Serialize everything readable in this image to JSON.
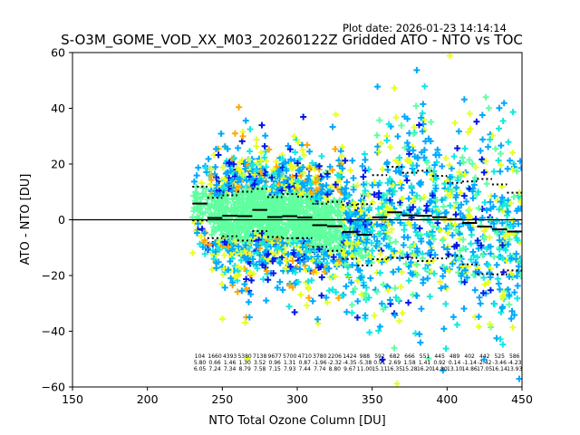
{
  "plot_date": "Plot date: 2026-01-23 14:14:14",
  "chart_data": {
    "type": "scatter",
    "title": "S-O3M_GOME_VOD_XX_M03_20260122Z Gridded ATO - NTO vs TOC",
    "xlabel": "NTO Total Ozone Column [DU]",
    "ylabel": "ATO - NTO [DU]",
    "xlim": [
      150,
      450
    ],
    "ylim": [
      -60,
      60
    ],
    "xticks": [
      "150",
      "200",
      "250",
      "300",
      "350",
      "400",
      "450"
    ],
    "yticks": [
      "60",
      "40",
      "20",
      "0",
      "−20",
      "−40",
      "−60"
    ],
    "grid": false,
    "zero_line": 0,
    "bin_width": 10,
    "bin_centers": [
      235,
      245,
      255,
      265,
      275,
      285,
      295,
      305,
      315,
      325,
      335,
      345,
      355,
      365,
      375,
      385,
      395,
      405,
      415,
      425,
      435,
      445
    ],
    "counts": [
      "104",
      "1660",
      "4393",
      "5380",
      "7138",
      "9677",
      "5700",
      "4710",
      "3780",
      "2206",
      "1424",
      "988",
      "592",
      "682",
      "666",
      "551",
      "445",
      "489",
      "402",
      "442",
      "525",
      "586"
    ],
    "means": [
      "5.80",
      "0.66",
      "1.46",
      "1.30",
      "3.52",
      "0.96",
      "1.31",
      "0.87",
      "-1.96",
      "-2.32",
      "-4.35",
      "-5.38",
      "0.91",
      "2.69",
      "1.58",
      "1.41",
      "0.92",
      "0.14",
      "-1.14",
      "-2.42",
      "-3.46",
      "-4.23"
    ],
    "stds": [
      "6.05",
      "7.24",
      "7.34",
      "8.79",
      "7.58",
      "7.15",
      "7.93",
      "7.44",
      "7.74",
      "8.80",
      "9.67",
      "11.00",
      "15.11",
      "16.35",
      "15.28",
      "16.20",
      "14.80",
      "13.10",
      "14.86",
      "17.05",
      "16.14",
      "13.93"
    ],
    "series": [
      {
        "name": "gridded points",
        "marker": "+",
        "color_scale": [
          "#0018e8",
          "#00a8ff",
          "#10e8e0",
          "#60ffa0",
          "#e8ff20",
          "#ffa800"
        ]
      }
    ],
    "colors": {
      "mean_line": "#000000",
      "std_dots": "#000000",
      "core": "#66ff99"
    }
  }
}
